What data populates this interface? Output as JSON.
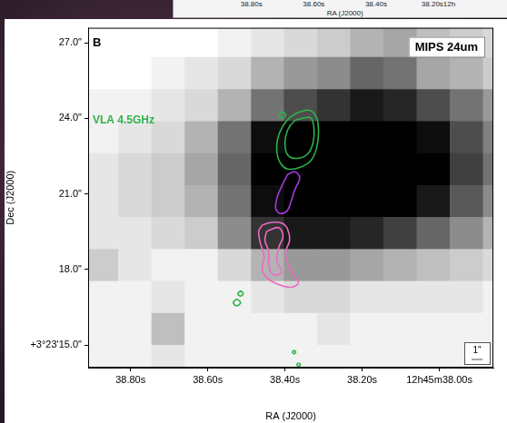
{
  "chart_data": [
    {
      "type": "axis",
      "xlabel": "RA (J2000)",
      "xlim": [
        39.05,
        37.98
      ],
      "xticks": [
        {
          "value": 38.8,
          "label": "38.80s"
        },
        {
          "value": 38.6,
          "label": "38.60s"
        },
        {
          "value": 38.4,
          "label": "38.40s"
        },
        {
          "value": 38.2,
          "label": "38.20s12h"
        }
      ]
    },
    {
      "type": "heatmap",
      "panel": "B",
      "image_label": "MIPS 24um",
      "xlabel": "RA (J2000)",
      "ylabel": "Dec (J2000)",
      "xlim": [
        38.91,
        37.86
      ],
      "ylim": [
        14.1,
        27.6
      ],
      "xticks": [
        {
          "value": 38.8,
          "label": "38.80s"
        },
        {
          "value": 38.6,
          "label": "38.60s"
        },
        {
          "value": 38.4,
          "label": "38.40s"
        },
        {
          "value": 38.2,
          "label": "38.20s"
        },
        {
          "value": 38.0,
          "label": "12h45m38.00s"
        }
      ],
      "yticks": [
        {
          "value": 15,
          "label": "+3°23'15.0\""
        },
        {
          "value": 18,
          "label": "18.0\""
        },
        {
          "value": 21,
          "label": "21.0\""
        },
        {
          "value": 24,
          "label": "24.0\""
        },
        {
          "value": 27,
          "label": "27.0\""
        }
      ],
      "grid": false,
      "legend": "upper left",
      "scale_bar": "1\"",
      "cells": {
        "x_edges": [
          38.918,
          38.832,
          38.746,
          38.66,
          38.574,
          38.488,
          38.403,
          38.317,
          38.231,
          38.145,
          38.059,
          37.973,
          37.887,
          37.801
        ],
        "y_edges": [
          27.71,
          26.44,
          25.16,
          23.89,
          22.62,
          21.35,
          20.08,
          18.81,
          17.54,
          16.27,
          15.0,
          13.73
        ],
        "values": [
          [
            0,
            0,
            0,
            0,
            0.05,
            0.1,
            0.15,
            0.2,
            0.3,
            0.35,
            0.25,
            0.2,
            0.15
          ],
          [
            0,
            0,
            0.05,
            0.1,
            0.15,
            0.3,
            0.4,
            0.45,
            0.6,
            0.55,
            0.35,
            0.3,
            0.2
          ],
          [
            0.05,
            0.05,
            0.1,
            0.15,
            0.3,
            0.55,
            0.7,
            0.8,
            0.9,
            0.85,
            0.7,
            0.55,
            0.4
          ],
          [
            0.05,
            0.1,
            0.15,
            0.3,
            0.55,
            0.95,
            1,
            1,
            1,
            1,
            0.95,
            0.7,
            0.5
          ],
          [
            0.1,
            0.15,
            0.2,
            0.35,
            0.6,
            1,
            1,
            1,
            1,
            1,
            1,
            0.75,
            0.55
          ],
          [
            0.1,
            0.15,
            0.2,
            0.3,
            0.55,
            0.95,
            1,
            1,
            1,
            1,
            0.9,
            0.65,
            0.45
          ],
          [
            0.1,
            0.1,
            0.15,
            0.2,
            0.45,
            0.8,
            0.9,
            0.9,
            0.85,
            0.75,
            0.6,
            0.45,
            0.3
          ],
          [
            0.2,
            0.1,
            0.05,
            0.05,
            0.15,
            0.3,
            0.4,
            0.4,
            0.35,
            0.3,
            0.25,
            0.2,
            0.15
          ],
          [
            0.05,
            0.05,
            0.1,
            0.05,
            0.05,
            0.1,
            0.15,
            0.15,
            0.1,
            0.1,
            0.1,
            0.1,
            0.05
          ],
          [
            0.05,
            0.05,
            0.25,
            0.05,
            0.05,
            0.05,
            0.05,
            0.1,
            0.05,
            0.05,
            0.05,
            0.05,
            0.05
          ],
          [
            0.05,
            0.05,
            0.1,
            0.05,
            0.05,
            0.05,
            0.05,
            0.05,
            0.05,
            0.05,
            0.05,
            0.05,
            0.05
          ]
        ]
      },
      "series": [
        {
          "name": "VLA 4.5GHz",
          "color": "#2db34a",
          "type": "contour",
          "paths": [
            [
              [
                38.365,
                24.25
              ],
              [
                38.336,
                24.32
              ],
              [
                38.318,
                24.03
              ],
              [
                38.313,
                23.47
              ],
              [
                38.318,
                22.83
              ],
              [
                38.332,
                22.34
              ],
              [
                38.36,
                22.06
              ],
              [
                38.393,
                21.99
              ],
              [
                38.412,
                22.23
              ],
              [
                38.421,
                22.69
              ],
              [
                38.419,
                23.19
              ],
              [
                38.407,
                23.65
              ],
              [
                38.388,
                24.03
              ]
            ],
            [
              [
                38.358,
                24.0
              ],
              [
                38.334,
                24.03
              ],
              [
                38.325,
                23.65
              ],
              [
                38.327,
                23.05
              ],
              [
                38.341,
                22.59
              ],
              [
                38.369,
                22.41
              ],
              [
                38.393,
                22.55
              ],
              [
                38.4,
                23.05
              ],
              [
                38.393,
                23.54
              ],
              [
                38.376,
                23.89
              ]
            ],
            [
              [
                38.407,
                24.28
              ],
              [
                38.398,
                24.14
              ],
              [
                38.407,
                24.0
              ],
              [
                38.416,
                24.14
              ]
            ],
            [
              [
                38.515,
                17.15
              ],
              [
                38.508,
                17.05
              ],
              [
                38.515,
                16.94
              ],
              [
                38.522,
                17.05
              ]
            ],
            [
              [
                38.525,
                16.83
              ],
              [
                38.515,
                16.69
              ],
              [
                38.525,
                16.55
              ],
              [
                38.534,
                16.69
              ]
            ],
            [
              [
                38.376,
                14.79
              ],
              [
                38.372,
                14.72
              ],
              [
                38.376,
                14.65
              ],
              [
                38.381,
                14.72
              ]
            ],
            [
              [
                38.365,
                14.29
              ],
              [
                38.36,
                14.22
              ],
              [
                38.365,
                14.15
              ],
              [
                38.369,
                14.22
              ]
            ]
          ]
        },
        {
          "color": "#a23be0",
          "type": "contour",
          "paths": [
            [
              [
                38.393,
                21.78
              ],
              [
                38.374,
                21.88
              ],
              [
                38.362,
                21.64
              ],
              [
                38.374,
                21.18
              ],
              [
                38.384,
                20.72
              ],
              [
                38.393,
                20.36
              ],
              [
                38.412,
                20.22
              ],
              [
                38.424,
                20.43
              ],
              [
                38.419,
                20.93
              ],
              [
                38.407,
                21.35
              ]
            ]
          ]
        },
        {
          "color": "#ee6ac6",
          "type": "contour",
          "paths": [
            [
              [
                38.459,
                19.76
              ],
              [
                38.435,
                19.87
              ],
              [
                38.407,
                19.83
              ],
              [
                38.393,
                19.59
              ],
              [
                38.388,
                19.16
              ],
              [
                38.398,
                18.71
              ],
              [
                38.393,
                18.25
              ],
              [
                38.379,
                17.82
              ],
              [
                38.365,
                17.47
              ],
              [
                38.384,
                17.29
              ],
              [
                38.416,
                17.4
              ],
              [
                38.445,
                17.65
              ],
              [
                38.459,
                18.0
              ],
              [
                38.454,
                18.53
              ],
              [
                38.464,
                19.06
              ],
              [
                38.468,
                19.52
              ]
            ],
            [
              [
                38.447,
                19.52
              ],
              [
                38.416,
                19.66
              ],
              [
                38.405,
                19.31
              ],
              [
                38.416,
                18.88
              ],
              [
                38.421,
                18.35
              ],
              [
                38.409,
                17.89
              ],
              [
                38.431,
                17.79
              ],
              [
                38.442,
                18.18
              ],
              [
                38.442,
                18.71
              ],
              [
                38.452,
                19.16
              ]
            ]
          ]
        }
      ]
    }
  ]
}
